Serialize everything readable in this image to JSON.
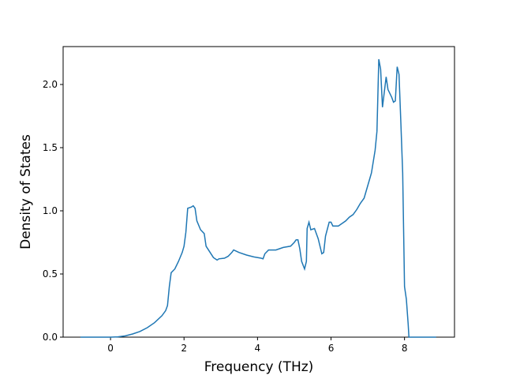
{
  "chart_data": {
    "type": "line",
    "x_label": "Frequency (THz)",
    "y_label": "Density of States",
    "x": [
      -0.82,
      0,
      0.2,
      0.4,
      0.6,
      0.8,
      1.0,
      1.2,
      1.4,
      1.5,
      1.55,
      1.6,
      1.65,
      1.75,
      1.85,
      1.95,
      2.0,
      2.05,
      2.1,
      2.2,
      2.25,
      2.3,
      2.35,
      2.45,
      2.55,
      2.6,
      2.8,
      2.9,
      2.95,
      3.1,
      3.2,
      3.3,
      3.35,
      3.5,
      3.7,
      3.9,
      4.1,
      4.15,
      4.2,
      4.3,
      4.5,
      4.6,
      4.7,
      4.9,
      5.0,
      5.05,
      5.1,
      5.15,
      5.2,
      5.28,
      5.33,
      5.35,
      5.4,
      5.45,
      5.55,
      5.65,
      5.75,
      5.8,
      5.85,
      5.95,
      6.0,
      6.05,
      6.2,
      6.3,
      6.4,
      6.5,
      6.6,
      6.7,
      6.8,
      6.9,
      7.0,
      7.05,
      7.1,
      7.2,
      7.25,
      7.3,
      7.35,
      7.4,
      7.5,
      7.55,
      7.65,
      7.7,
      7.75,
      7.8,
      7.85,
      7.9,
      7.95,
      8.0,
      8.05,
      8.1,
      8.12,
      8.86
    ],
    "series": [
      {
        "name": "DOS",
        "color": "#1f77b4",
        "values": [
          0,
          0,
          0.002,
          0.01,
          0.025,
          0.045,
          0.075,
          0.115,
          0.17,
          0.21,
          0.25,
          0.4,
          0.51,
          0.54,
          0.6,
          0.67,
          0.72,
          0.83,
          1.02,
          1.03,
          1.04,
          1.02,
          0.92,
          0.85,
          0.82,
          0.72,
          0.63,
          0.61,
          0.62,
          0.625,
          0.64,
          0.67,
          0.69,
          0.67,
          0.65,
          0.635,
          0.625,
          0.62,
          0.66,
          0.69,
          0.69,
          0.7,
          0.71,
          0.72,
          0.75,
          0.77,
          0.77,
          0.7,
          0.6,
          0.54,
          0.6,
          0.86,
          0.91,
          0.85,
          0.86,
          0.78,
          0.66,
          0.67,
          0.8,
          0.91,
          0.91,
          0.88,
          0.88,
          0.9,
          0.92,
          0.95,
          0.97,
          1.01,
          1.06,
          1.1,
          1.2,
          1.25,
          1.3,
          1.48,
          1.63,
          2.2,
          2.12,
          1.82,
          2.06,
          1.96,
          1.9,
          1.86,
          1.87,
          2.14,
          2.08,
          1.7,
          1.3,
          0.4,
          0.3,
          0.1,
          0,
          0
        ]
      }
    ],
    "xlim": [
      -1.29,
      9.36
    ],
    "ylim": [
      0,
      2.3
    ],
    "xticks": [
      0,
      2,
      4,
      6,
      8
    ],
    "yticks": [
      {
        "value": 0,
        "label": "0.0"
      },
      {
        "value": 0.5,
        "label": "0.5"
      },
      {
        "value": 1,
        "label": "1.0"
      },
      {
        "value": 1.5,
        "label": "1.5"
      },
      {
        "value": 2,
        "label": "2.0"
      }
    ]
  }
}
